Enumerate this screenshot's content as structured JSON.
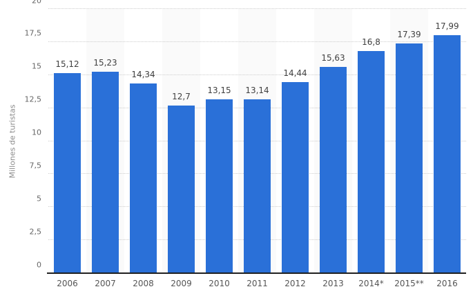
{
  "chart_data": {
    "type": "bar",
    "title": "",
    "xlabel": "",
    "ylabel": "Millones de turistas",
    "categories": [
      "2006",
      "2007",
      "2008",
      "2009",
      "2010",
      "2011",
      "2012",
      "2013",
      "2014*",
      "2015**",
      "2016"
    ],
    "values": [
      15.12,
      15.23,
      14.34,
      12.7,
      13.15,
      13.14,
      14.44,
      15.63,
      16.8,
      17.39,
      17.99
    ],
    "value_labels": [
      "15,12",
      "15,23",
      "14,34",
      "12,7",
      "13,15",
      "13,14",
      "14,44",
      "15,63",
      "16,8",
      "17,39",
      "17,99"
    ],
    "ylim": [
      0,
      20
    ],
    "ytick_values": [
      0,
      2.5,
      5,
      7.5,
      10,
      12.5,
      15,
      17.5,
      20
    ],
    "ytick_labels": [
      "0",
      "2,5",
      "5",
      "7,5",
      "10",
      "12,5",
      "15",
      "17,5",
      "20"
    ],
    "grid": "horizontal-dotted",
    "legend": "none",
    "colors": {
      "bar": "#2a70d8",
      "stripe": "#fafafa",
      "gridline": "#cccccc",
      "axis_line": "#1f1f1f",
      "value_label": "#404040",
      "tick_label": "#666666",
      "axis_title": "#8c8c8c",
      "background": "#ffffff"
    }
  }
}
